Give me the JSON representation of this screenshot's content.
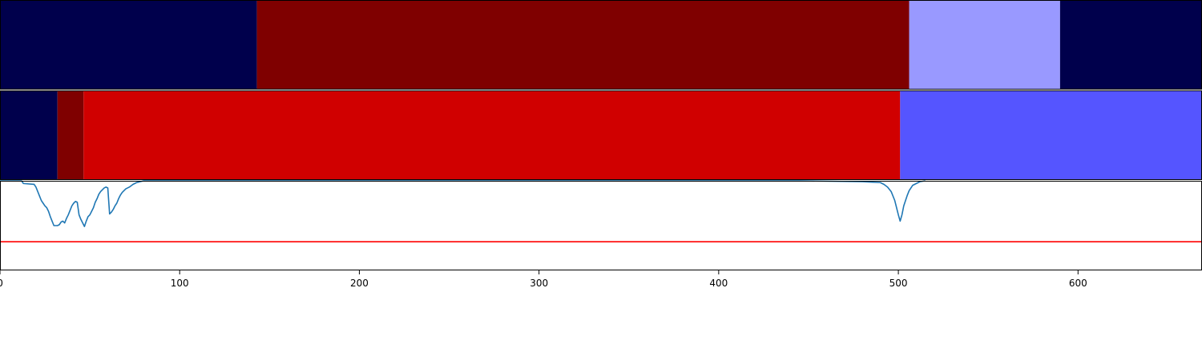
{
  "chart_data": [
    {
      "type": "heatmap",
      "panel": "segmentation-top",
      "segments": [
        {
          "start": 0,
          "end": 143,
          "color": "#00004c"
        },
        {
          "start": 143,
          "end": 506,
          "color": "#7f0000"
        },
        {
          "start": 506,
          "end": 590,
          "color": "#9999ff"
        },
        {
          "start": 590,
          "end": 669,
          "color": "#00004c"
        }
      ]
    },
    {
      "type": "heatmap",
      "panel": "segmentation-bottom",
      "segments": [
        {
          "start": 0,
          "end": 32,
          "color": "#00004c"
        },
        {
          "start": 32,
          "end": 46.5,
          "color": "#7f0000"
        },
        {
          "start": 46.5,
          "end": 501,
          "color": "#d00000"
        },
        {
          "start": 501,
          "end": 669,
          "color": "#5555ff"
        }
      ]
    },
    {
      "type": "line",
      "panel": "signal",
      "xlim": [
        0,
        669
      ],
      "ylim": [
        0,
        1
      ],
      "series": [
        {
          "color": "#1f77b4",
          "points": [
            [
              0,
              1.0
            ],
            [
              12,
              1.0
            ],
            [
              13,
              0.97
            ],
            [
              19,
              0.96
            ],
            [
              20,
              0.93
            ],
            [
              21,
              0.88
            ],
            [
              22,
              0.83
            ],
            [
              23,
              0.78
            ],
            [
              24,
              0.75
            ],
            [
              25,
              0.72
            ],
            [
              26,
              0.7
            ],
            [
              27,
              0.66
            ],
            [
              28,
              0.6
            ],
            [
              29,
              0.55
            ],
            [
              30,
              0.5
            ],
            [
              31,
              0.5
            ],
            [
              32,
              0.5
            ],
            [
              33,
              0.51
            ],
            [
              34,
              0.54
            ],
            [
              35,
              0.55
            ],
            [
              36,
              0.53
            ],
            [
              37,
              0.58
            ],
            [
              38,
              0.62
            ],
            [
              39,
              0.67
            ],
            [
              40,
              0.72
            ],
            [
              41,
              0.75
            ],
            [
              42,
              0.77
            ],
            [
              43,
              0.76
            ],
            [
              44,
              0.62
            ],
            [
              45,
              0.57
            ],
            [
              46,
              0.53
            ],
            [
              47,
              0.49
            ],
            [
              48,
              0.55
            ],
            [
              49,
              0.6
            ],
            [
              50,
              0.62
            ],
            [
              51,
              0.66
            ],
            [
              52,
              0.7
            ],
            [
              53,
              0.76
            ],
            [
              54,
              0.8
            ],
            [
              55,
              0.85
            ],
            [
              56,
              0.88
            ],
            [
              57,
              0.9
            ],
            [
              58,
              0.92
            ],
            [
              59,
              0.93
            ],
            [
              60,
              0.92
            ],
            [
              61,
              0.63
            ],
            [
              62,
              0.65
            ],
            [
              63,
              0.68
            ],
            [
              64,
              0.72
            ],
            [
              65,
              0.75
            ],
            [
              66,
              0.8
            ],
            [
              67,
              0.84
            ],
            [
              68,
              0.87
            ],
            [
              70,
              0.91
            ],
            [
              72,
              0.93
            ],
            [
              74,
              0.96
            ],
            [
              76,
              0.98
            ],
            [
              78,
              0.99
            ],
            [
              80,
              1.0
            ],
            [
              125,
              1.0
            ],
            [
              445,
              1.0
            ],
            [
              480,
              0.99
            ],
            [
              490,
              0.98
            ],
            [
              492,
              0.96
            ],
            [
              494,
              0.93
            ],
            [
              496,
              0.88
            ],
            [
              498,
              0.78
            ],
            [
              499,
              0.7
            ],
            [
              500,
              0.62
            ],
            [
              501,
              0.55
            ],
            [
              502,
              0.62
            ],
            [
              503,
              0.72
            ],
            [
              504,
              0.78
            ],
            [
              505,
              0.84
            ],
            [
              506,
              0.89
            ],
            [
              507,
              0.92
            ],
            [
              508,
              0.95
            ],
            [
              510,
              0.97
            ],
            [
              512,
              0.99
            ],
            [
              515,
              1.0
            ]
          ]
        }
      ],
      "threshold": {
        "y": 0.32,
        "color": "#ff0000"
      }
    }
  ],
  "x_axis": {
    "range": [
      0,
      669
    ],
    "ticks": [
      0,
      100,
      200,
      300,
      400,
      500,
      600
    ],
    "tick_labels": [
      "0",
      "100",
      "200",
      "300",
      "400",
      "500",
      "600"
    ]
  }
}
